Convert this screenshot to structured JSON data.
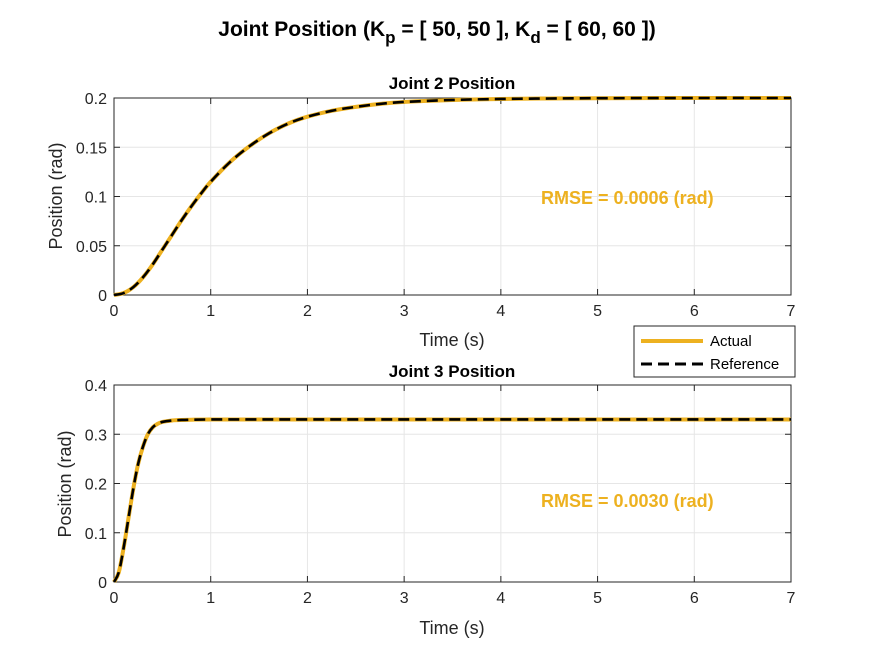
{
  "figure": {
    "title_main": "Joint Position (K",
    "title_sub1": "p",
    "title_mid": " = [ 50, 50 ], K",
    "title_sub2": "d",
    "title_end": " = [ 60, 60 ])"
  },
  "colors": {
    "actual": "#EDB120",
    "reference": "#000000",
    "annotation": "#EDB120",
    "grid": "#e6e6e6",
    "axis": "#262626"
  },
  "legend": {
    "actual": "Actual",
    "reference": "Reference",
    "placement": "outside, between subplots, right"
  },
  "chart_data": [
    {
      "type": "line",
      "title": "Joint 2 Position",
      "xlabel": "Time (s)",
      "ylabel": "Position (rad)",
      "xlim": [
        0,
        7
      ],
      "ylim": [
        0,
        0.2
      ],
      "xticks": [
        "0",
        "1",
        "2",
        "3",
        "4",
        "5",
        "6",
        "7"
      ],
      "yticks": [
        "0",
        "0.05",
        "0.1",
        "0.15",
        "0.2"
      ],
      "ytick_values": [
        0,
        0.05,
        0.1,
        0.15,
        0.2
      ],
      "grid": true,
      "annotation": "RMSE = 0.0006 (rad)",
      "x": [
        0,
        0.1,
        0.2,
        0.3,
        0.4,
        0.5,
        0.6,
        0.7,
        0.8,
        0.9,
        1.0,
        1.2,
        1.4,
        1.6,
        1.8,
        2.0,
        2.25,
        2.5,
        2.75,
        3.0,
        3.5,
        4.0,
        4.5,
        5.0,
        6.0,
        7.0
      ],
      "series": [
        {
          "name": "Actual",
          "values": [
            0,
            0.002,
            0.008,
            0.018,
            0.031,
            0.046,
            0.061,
            0.076,
            0.09,
            0.103,
            0.115,
            0.135,
            0.151,
            0.164,
            0.174,
            0.181,
            0.187,
            0.191,
            0.194,
            0.196,
            0.198,
            0.199,
            0.1995,
            0.1998,
            0.2,
            0.2
          ]
        },
        {
          "name": "Reference",
          "values": [
            0,
            0.002,
            0.008,
            0.018,
            0.031,
            0.046,
            0.061,
            0.076,
            0.09,
            0.103,
            0.115,
            0.135,
            0.151,
            0.164,
            0.174,
            0.181,
            0.187,
            0.191,
            0.194,
            0.196,
            0.198,
            0.199,
            0.1995,
            0.1998,
            0.2,
            0.2
          ]
        }
      ]
    },
    {
      "type": "line",
      "title": "Joint 3 Position",
      "xlabel": "Time (s)",
      "ylabel": "Position (rad)",
      "xlim": [
        0,
        7
      ],
      "ylim": [
        0,
        0.4
      ],
      "xticks": [
        "0",
        "1",
        "2",
        "3",
        "4",
        "5",
        "6",
        "7"
      ],
      "yticks": [
        "0",
        "0.1",
        "0.2",
        "0.3",
        "0.4"
      ],
      "ytick_values": [
        0,
        0.1,
        0.2,
        0.3,
        0.4
      ],
      "grid": true,
      "annotation": "RMSE = 0.0030 (rad)",
      "x": [
        0,
        0.05,
        0.1,
        0.15,
        0.2,
        0.25,
        0.3,
        0.35,
        0.4,
        0.45,
        0.5,
        0.6,
        0.7,
        0.8,
        1.0,
        1.5,
        2.0,
        3.0,
        5.0,
        7.0
      ],
      "series": [
        {
          "name": "Actual",
          "values": [
            0,
            0.02,
            0.07,
            0.13,
            0.19,
            0.24,
            0.275,
            0.3,
            0.314,
            0.321,
            0.325,
            0.328,
            0.329,
            0.3295,
            0.33,
            0.33,
            0.33,
            0.33,
            0.33,
            0.33
          ]
        },
        {
          "name": "Reference",
          "values": [
            0,
            0.02,
            0.07,
            0.13,
            0.19,
            0.24,
            0.275,
            0.3,
            0.314,
            0.321,
            0.325,
            0.328,
            0.329,
            0.3295,
            0.33,
            0.33,
            0.33,
            0.33,
            0.33,
            0.33
          ]
        }
      ]
    }
  ]
}
